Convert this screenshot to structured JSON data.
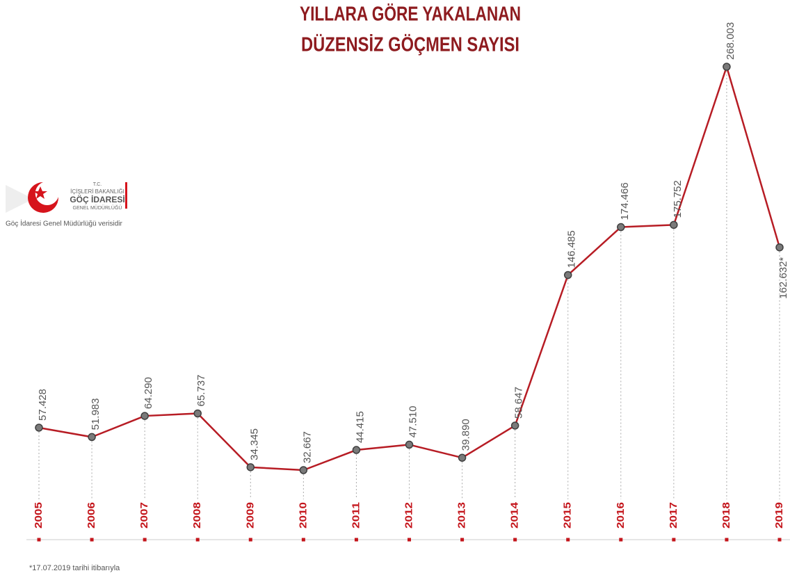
{
  "chart_data": {
    "type": "line",
    "title": [
      "YILLARA GÖRE YAKALANAN",
      "DÜZENSİZ GÖÇMEN SAYISI"
    ],
    "categories": [
      "2005",
      "2006",
      "2007",
      "2008",
      "2009",
      "2010",
      "2011",
      "2012",
      "2013",
      "2014",
      "2015",
      "2016",
      "2017",
      "2018",
      "2019"
    ],
    "values": [
      57428,
      51983,
      64290,
      65737,
      34345,
      32667,
      44415,
      47510,
      39890,
      58647,
      146485,
      174466,
      175752,
      268003,
      162632
    ],
    "value_labels": [
      "57.428",
      "51.983",
      "64.290",
      "65.737",
      "34.345",
      "32.667",
      "44.415",
      "47.510",
      "39.890",
      "58.647",
      "146.485",
      "174.466",
      "175.752",
      "268.003",
      "162.632*"
    ],
    "color": "#b71c24",
    "source": "Göç İdaresi Genel Müdürlüğü verisidir",
    "footnote": "*17.07.2019 tarihi itibarıyla"
  },
  "logo": {
    "lines": [
      "T.C.",
      "İÇİŞLERİ BAKANLIĞI",
      "GÖÇ İDARESİ",
      "GENEL MÜDÜRLÜĞÜ"
    ]
  }
}
